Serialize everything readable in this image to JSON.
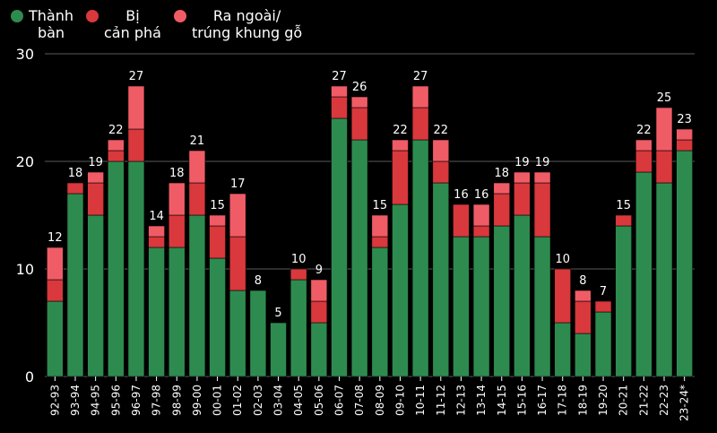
{
  "chart_data": {
    "type": "bar",
    "stacked": true,
    "title": "",
    "xlabel": "",
    "ylabel": "",
    "ylim": [
      0,
      30
    ],
    "yticks": [
      0,
      10,
      20,
      30
    ],
    "grid": true,
    "legend_position": "top-left",
    "categories": [
      "92-93",
      "93-94",
      "94-95",
      "95-96",
      "96-97",
      "97-98",
      "98-99",
      "99-00",
      "00-01",
      "01-02",
      "02-03",
      "03-04",
      "04-05",
      "05-06",
      "06-07",
      "07-08",
      "08-09",
      "09-10",
      "10-11",
      "11-12",
      "12-13",
      "13-14",
      "14-15",
      "15-16",
      "16-17",
      "17-18",
      "18-19",
      "19-20",
      "20-21",
      "21-22",
      "22-23",
      "23-24*"
    ],
    "series": [
      {
        "name": "Thành\nbàn",
        "color": "#2e8b4f",
        "values": [
          7,
          17,
          15,
          20,
          20,
          12,
          12,
          15,
          11,
          8,
          8,
          5,
          9,
          5,
          24,
          22,
          12,
          16,
          22,
          18,
          13,
          13,
          14,
          15,
          13,
          5,
          4,
          6,
          14,
          19,
          18,
          21
        ]
      },
      {
        "name": "Bị\ncản phá",
        "color": "#d9383c",
        "values": [
          2,
          1,
          3,
          1,
          3,
          1,
          3,
          3,
          3,
          5,
          0,
          0,
          1,
          2,
          2,
          3,
          1,
          5,
          3,
          2,
          3,
          1,
          3,
          3,
          5,
          5,
          3,
          1,
          1,
          2,
          3,
          1
        ]
      },
      {
        "name": "Ra ngoài/\ntrúng khung gỗ",
        "color": "#f05c66",
        "values": [
          3,
          0,
          1,
          1,
          4,
          1,
          3,
          3,
          1,
          4,
          0,
          0,
          0,
          2,
          1,
          1,
          2,
          1,
          2,
          2,
          0,
          2,
          1,
          1,
          1,
          0,
          1,
          0,
          0,
          1,
          4,
          1
        ]
      }
    ],
    "totals": [
      12,
      18,
      19,
      22,
      27,
      14,
      18,
      21,
      15,
      17,
      8,
      5,
      10,
      9,
      27,
      26,
      15,
      22,
      27,
      22,
      16,
      16,
      18,
      19,
      19,
      10,
      8,
      7,
      15,
      22,
      25,
      23
    ]
  }
}
